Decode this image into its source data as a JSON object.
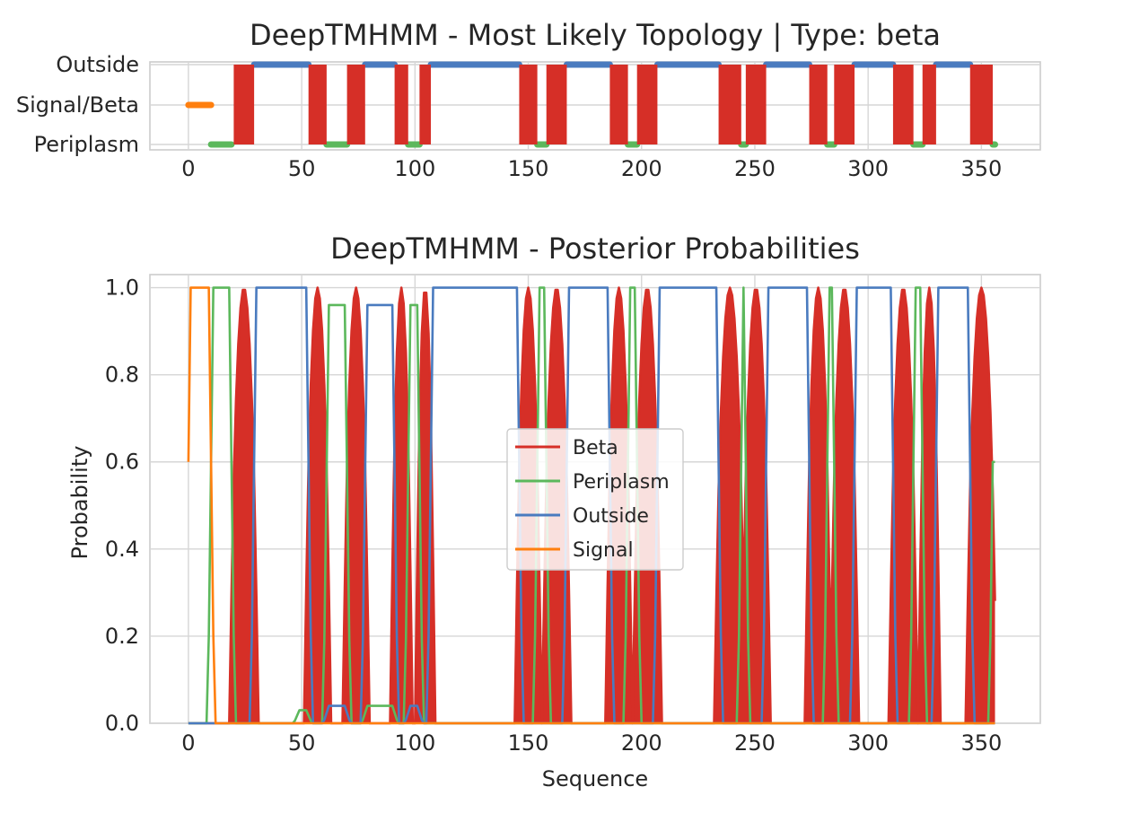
{
  "chart_data": [
    {
      "type": "line",
      "title": "DeepTMHMM - Most Likely Topology | Type: beta",
      "xlabel": "",
      "ylabel": "",
      "xlim": [
        -17,
        376
      ],
      "xticks": [
        0,
        50,
        100,
        150,
        200,
        250,
        300,
        350
      ],
      "yticks": [
        "Outside",
        "Signal/Beta",
        "Periplasm"
      ],
      "grid": true,
      "series": [
        {
          "name": "Signal",
          "color": "#ff7f0e",
          "level": "Signal/Beta",
          "segments": [
            [
              0,
              10
            ]
          ]
        },
        {
          "name": "Periplasm",
          "color": "#5cb85c",
          "level": "Periplasm",
          "segments": [
            [
              10,
              19
            ],
            [
              61,
              70
            ],
            [
              97,
              102
            ],
            [
              154,
              158
            ],
            [
              194,
              198
            ],
            [
              244,
              246
            ],
            [
              282,
              285
            ],
            [
              320,
              324
            ],
            [
              355,
              356
            ]
          ]
        },
        {
          "name": "Outside",
          "color": "#4a7bbf",
          "level": "Outside",
          "segments": [
            [
              29,
              53
            ],
            [
              78,
              91
            ],
            [
              107,
              146
            ],
            [
              167,
              186
            ],
            [
              207,
              234
            ],
            [
              255,
              274
            ],
            [
              294,
              311
            ],
            [
              330,
              345
            ]
          ]
        },
        {
          "name": "Beta",
          "color": "#d62f27",
          "segments": [
            [
              20,
              29
            ],
            [
              53,
              61
            ],
            [
              70,
              78
            ],
            [
              91,
              97
            ],
            [
              102,
              107
            ],
            [
              146,
              154
            ],
            [
              158,
              167
            ],
            [
              186,
              194
            ],
            [
              198,
              207
            ],
            [
              234,
              244
            ],
            [
              246,
              255
            ],
            [
              274,
              282
            ],
            [
              285,
              294
            ],
            [
              311,
              320
            ],
            [
              324,
              330
            ],
            [
              345,
              355
            ]
          ]
        }
      ]
    },
    {
      "type": "line",
      "title": "DeepTMHMM - Posterior Probabilities",
      "xlabel": "Sequence",
      "ylabel": "Probability",
      "xlim": [
        -17,
        376
      ],
      "ylim": [
        0,
        1.03
      ],
      "xticks": [
        0,
        50,
        100,
        150,
        200,
        250,
        300,
        350
      ],
      "yticks": [
        "0.0",
        "0.2",
        "0.4",
        "0.6",
        "0.8",
        "1.0"
      ],
      "grid": true,
      "legend": "center",
      "sequence_length": 356,
      "series": [
        {
          "name": "Beta",
          "color": "#d62f27",
          "fill": true,
          "spans": [
            [
              20,
              29
            ],
            [
              53,
              61
            ],
            [
              70,
              78
            ],
            [
              91,
              97
            ],
            [
              102,
              107
            ],
            [
              146,
              154
            ],
            [
              158,
              167
            ],
            [
              186,
              194
            ],
            [
              198,
              207
            ],
            [
              234,
              244
            ],
            [
              246,
              255
            ],
            [
              274,
              282
            ],
            [
              285,
              294
            ],
            [
              311,
              320
            ],
            [
              324,
              330
            ],
            [
              345,
              355
            ]
          ]
        },
        {
          "name": "Periplasm",
          "color": "#5cb85c",
          "spans": [
            [
              10,
              19,
              1.0
            ],
            [
              48,
              53,
              0.03
            ],
            [
              61,
              70,
              0.96
            ],
            [
              78,
              91,
              0.04
            ],
            [
              97,
              102,
              0.96
            ],
            [
              154,
              158,
              1.0
            ],
            [
              194,
              198,
              1.0
            ],
            [
              244,
              246,
              1.0
            ],
            [
              282,
              285,
              1.0
            ],
            [
              320,
              324,
              1.0
            ],
            [
              355,
              356,
              1.0
            ]
          ]
        },
        {
          "name": "Outside",
          "color": "#4a7bbf",
          "spans": [
            [
              29,
              53,
              1.0
            ],
            [
              61,
              70,
              0.04
            ],
            [
              78,
              91,
              0.96
            ],
            [
              97,
              102,
              0.04
            ],
            [
              107,
              146,
              1.0
            ],
            [
              167,
              186,
              1.0
            ],
            [
              207,
              234,
              1.0
            ],
            [
              255,
              274,
              1.0
            ],
            [
              294,
              311,
              1.0
            ],
            [
              330,
              345,
              1.0
            ]
          ]
        },
        {
          "name": "Signal",
          "color": "#ff7f0e",
          "spans": [
            [
              0,
              10,
              1.0
            ]
          ]
        }
      ]
    }
  ]
}
